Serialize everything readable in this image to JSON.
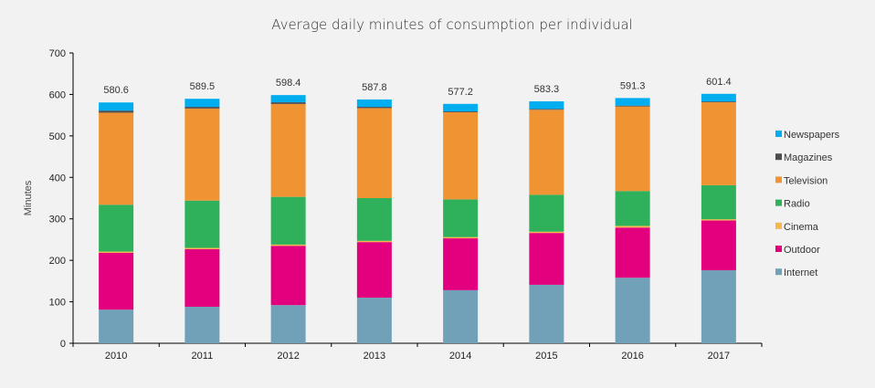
{
  "chart_data": {
    "type": "bar",
    "stacked": true,
    "title": "Average daily minutes of consumption per individual",
    "xlabel": "",
    "ylabel": "Minutes",
    "ylim": [
      0,
      700
    ],
    "yticks": [
      0,
      100,
      200,
      300,
      400,
      500,
      600,
      700
    ],
    "grid": false,
    "legend_position": "right",
    "categories": [
      "2010",
      "2011",
      "2012",
      "2013",
      "2014",
      "2015",
      "2016",
      "2017"
    ],
    "totals": [
      "580.6",
      "589.5",
      "598.4",
      "587.8",
      "577.2",
      "583.3",
      "591.3",
      "601.4"
    ],
    "series": [
      {
        "name": "Internet",
        "color": "#71a1b9",
        "values": [
          81,
          88,
          92,
          110,
          128,
          141,
          158,
          176
        ]
      },
      {
        "name": "Outdoor",
        "color": "#e2007f",
        "values": [
          137,
          139,
          143,
          134,
          125,
          125,
          121,
          120
        ]
      },
      {
        "name": "Cinema",
        "color": "#f7b54a",
        "values": [
          3,
          3,
          3,
          3,
          3,
          3,
          4,
          3
        ]
      },
      {
        "name": "Radio",
        "color": "#2fb05a",
        "values": [
          113,
          114,
          115,
          103,
          91,
          89,
          84,
          82
        ]
      },
      {
        "name": "Television",
        "color": "#f09433",
        "values": [
          222,
          222,
          224,
          217,
          210,
          205,
          204,
          200
        ]
      },
      {
        "name": "Magazines",
        "color": "#4d4d4f",
        "values": [
          5,
          4,
          4,
          3,
          2,
          2,
          2,
          2
        ]
      },
      {
        "name": "Newspapers",
        "color": "#00aeef",
        "values": [
          19.6,
          19.5,
          17.4,
          17.8,
          18.2,
          18.3,
          18.3,
          18.4
        ]
      }
    ],
    "legend_order": [
      "Newspapers",
      "Magazines",
      "Television",
      "Radio",
      "Cinema",
      "Outdoor",
      "Internet"
    ]
  }
}
